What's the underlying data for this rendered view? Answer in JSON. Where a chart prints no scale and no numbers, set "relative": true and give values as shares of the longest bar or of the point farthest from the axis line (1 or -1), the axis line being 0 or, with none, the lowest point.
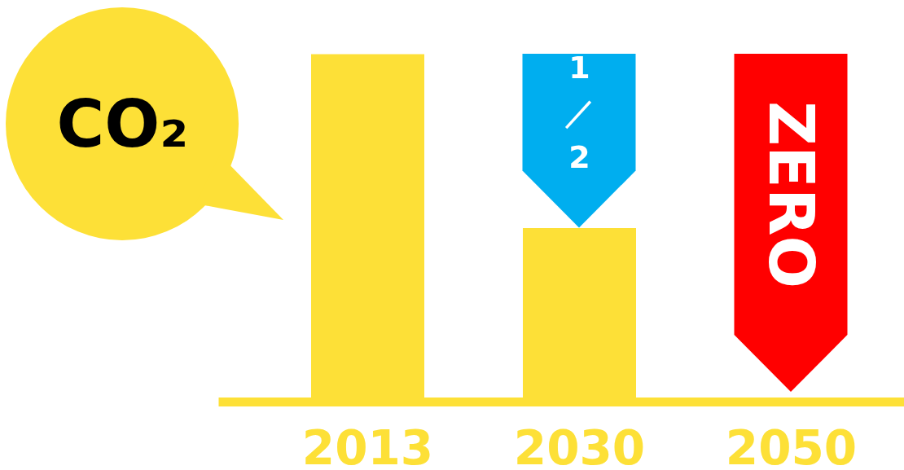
{
  "chart_data": {
    "type": "bar",
    "title": "CO₂",
    "relative": true,
    "categories": [
      "2013",
      "2030",
      "2050"
    ],
    "values": [
      1,
      0.5,
      0
    ],
    "color": "#fde037",
    "annotations": [
      {
        "text": "1／2",
        "x": "2030",
        "y": 0.5
      },
      {
        "text": "ZERO",
        "x": "2050",
        "y": 0
      }
    ]
  }
}
